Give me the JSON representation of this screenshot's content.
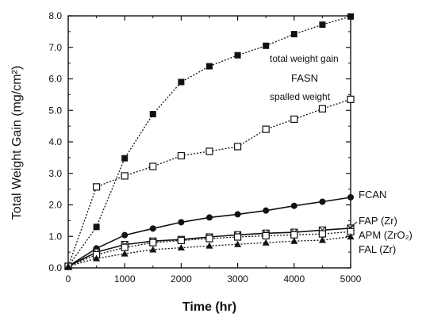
{
  "chart_data": {
    "type": "line",
    "xlabel": "Time (hr)",
    "ylabel": "Total Weight Gain (mg/cm²)",
    "xlim": [
      0,
      5000
    ],
    "ylim": [
      0,
      8.0
    ],
    "xticks": [
      0,
      1000,
      2000,
      3000,
      4000,
      5000
    ],
    "yticks": [
      0.0,
      1.0,
      2.0,
      3.0,
      4.0,
      5.0,
      6.0,
      7.0,
      8.0
    ],
    "ytick_labels": [
      "0.0",
      "1.0",
      "2.0",
      "3.0",
      "4.0",
      "5.0",
      "6.0",
      "7.0",
      "8.0"
    ],
    "grid": false,
    "annotations": {
      "total_weight_gain": "total weight gain",
      "fasn": "FASN",
      "spalled_weight": "spalled weight",
      "fcan": "FCAN",
      "fap": "FAP (Zr)",
      "apm": "APM (ZrO₂)",
      "fal": "FAL (Zr)"
    },
    "series": [
      {
        "key": "fasn_total",
        "marker": "filled-square",
        "line": "dotted",
        "x": [
          0,
          500,
          1000,
          1500,
          2000,
          2500,
          3000,
          3500,
          4000,
          4500,
          5000
        ],
        "y": [
          0.05,
          1.3,
          3.48,
          4.88,
          5.9,
          6.4,
          6.75,
          7.05,
          7.42,
          7.72,
          7.98
        ]
      },
      {
        "key": "fasn_spalled",
        "marker": "open-square",
        "line": "dotted",
        "x": [
          0,
          500,
          1000,
          1500,
          2000,
          2500,
          3000,
          3500,
          4000,
          4500,
          5000
        ],
        "y": [
          0.05,
          2.57,
          2.92,
          3.22,
          3.56,
          3.7,
          3.85,
          4.4,
          4.72,
          5.05,
          5.35
        ]
      },
      {
        "key": "fcan",
        "marker": "filled-circle",
        "line": "solid",
        "x": [
          0,
          500,
          1000,
          1500,
          2000,
          2500,
          3000,
          3500,
          4000,
          4500,
          5000
        ],
        "y": [
          0.05,
          0.62,
          1.04,
          1.25,
          1.45,
          1.6,
          1.7,
          1.82,
          1.97,
          2.1,
          2.24
        ]
      },
      {
        "key": "fap",
        "marker": "crossed-square",
        "line": "solid",
        "x": [
          0,
          500,
          1000,
          1500,
          2000,
          2500,
          3000,
          3500,
          4000,
          4500,
          5000
        ],
        "y": [
          0.05,
          0.5,
          0.74,
          0.85,
          0.9,
          0.98,
          1.05,
          1.1,
          1.13,
          1.2,
          1.26
        ]
      },
      {
        "key": "apm",
        "marker": "open-square",
        "line": "dotted",
        "x": [
          0,
          500,
          1000,
          1500,
          2000,
          2500,
          3000,
          3500,
          4000,
          4500,
          5000
        ],
        "y": [
          0.05,
          0.42,
          0.65,
          0.8,
          0.87,
          0.93,
          0.98,
          1.02,
          1.05,
          1.08,
          1.15
        ]
      },
      {
        "key": "fal",
        "marker": "filled-triangle",
        "line": "dotted",
        "x": [
          0,
          500,
          1000,
          1500,
          2000,
          2500,
          3000,
          3500,
          4000,
          4500,
          5000
        ],
        "y": [
          0.05,
          0.3,
          0.45,
          0.58,
          0.64,
          0.7,
          0.75,
          0.8,
          0.85,
          0.88,
          0.99
        ]
      }
    ]
  }
}
